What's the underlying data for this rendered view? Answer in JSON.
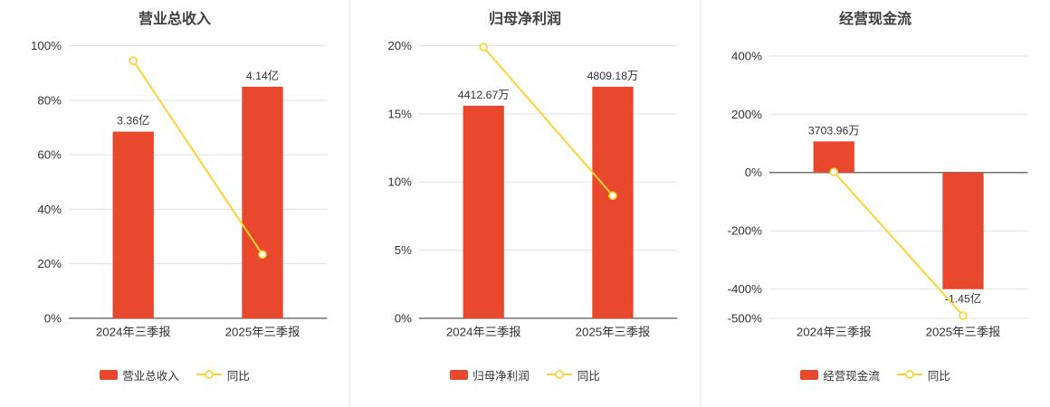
{
  "colors": {
    "bar": "#e8492d",
    "line": "#ffd234",
    "grid": "#e0e0e0",
    "axis": "#737373",
    "title_text": "#404040",
    "tick_text": "#333333"
  },
  "chart_data": [
    {
      "type": "bar+line",
      "title": "营业总收入",
      "categories": [
        "2024年三季报",
        "2025年三季报"
      ],
      "bar_series": {
        "name": "营业总收入",
        "values": [
          68.5,
          85.0
        ],
        "labels": [
          "3.36亿",
          "4.14亿"
        ]
      },
      "line_series": {
        "name": "同比",
        "values": [
          94.5,
          23.4
        ]
      },
      "ylim": [
        0,
        100
      ],
      "yticks": [
        {
          "v": 0,
          "label": "0%"
        },
        {
          "v": 20,
          "label": "20%"
        },
        {
          "v": 40,
          "label": "40%"
        },
        {
          "v": 60,
          "label": "60%"
        },
        {
          "v": 80,
          "label": "80%"
        },
        {
          "v": 100,
          "label": "100%"
        }
      ]
    },
    {
      "type": "bar+line",
      "title": "归母净利润",
      "categories": [
        "2024年三季报",
        "2025年三季报"
      ],
      "bar_series": {
        "name": "归母净利润",
        "values": [
          15.6,
          17.0
        ],
        "labels": [
          "4412.67万",
          "4809.18万"
        ]
      },
      "line_series": {
        "name": "同比",
        "values": [
          19.9,
          9.0
        ]
      },
      "ylim": [
        0,
        20
      ],
      "yticks": [
        {
          "v": 0,
          "label": "0%"
        },
        {
          "v": 5,
          "label": "5%"
        },
        {
          "v": 10,
          "label": "10%"
        },
        {
          "v": 15,
          "label": "15%"
        },
        {
          "v": 20,
          "label": "20%"
        }
      ]
    },
    {
      "type": "bar+line",
      "title": "经营现金流",
      "categories": [
        "2024年三季报",
        "2025年三季报"
      ],
      "bar_series": {
        "name": "经营现金流",
        "values": [
          107,
          -400
        ],
        "labels": [
          "3703.96万",
          "-1.45亿"
        ]
      },
      "line_series": {
        "name": "同比",
        "values": [
          2,
          -491
        ]
      },
      "ylim": [
        -500,
        435
      ],
      "yticks": [
        {
          "v": 400,
          "label": "400%"
        },
        {
          "v": 200,
          "label": "200%"
        },
        {
          "v": 0,
          "label": "0%"
        },
        {
          "v": -200,
          "label": "-200%"
        },
        {
          "v": -400,
          "label": "-400%"
        },
        {
          "v": -500,
          "label": "-500%"
        }
      ]
    }
  ]
}
